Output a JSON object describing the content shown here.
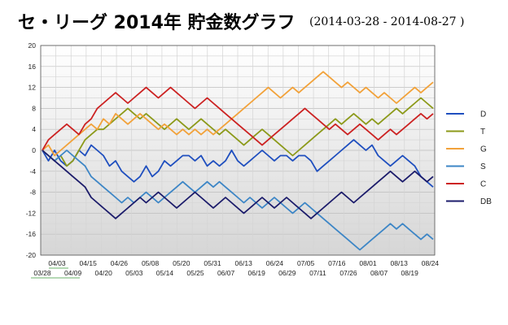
{
  "title": "セ・リーグ 2014年 貯金数グラフ",
  "date_range": "(2014-03-28 - 2014-08-27 )",
  "chart_data": {
    "type": "line",
    "title": "セ・リーグ 2014年 貯金数グラフ",
    "subtitle": "(2014-03-28 - 2014-08-27 )",
    "xlabel": "",
    "ylabel": "",
    "ylim": [
      -20,
      20
    ],
    "yticks": [
      20,
      16,
      12,
      8,
      4,
      0,
      -4,
      -8,
      -12,
      -16,
      -20
    ],
    "grid": true,
    "legend": "right",
    "x_ticks_upper": [
      "04/03",
      "04/15",
      "04/26",
      "05/08",
      "05/20",
      "05/31",
      "06/13",
      "06/24",
      "07/05",
      "07/16",
      "08/01",
      "08/13",
      "08/24"
    ],
    "x_ticks_lower": [
      "03/28",
      "04/09",
      "04/20",
      "05/03",
      "05/14",
      "05/25",
      "06/07",
      "06/19",
      "06/29",
      "07/11",
      "07/26",
      "08/07",
      "08/19"
    ],
    "series": [
      {
        "name": "D",
        "color": "#1f4fbf",
        "values": [
          0,
          -2,
          0,
          -2,
          -3,
          -2,
          0,
          -1,
          1,
          0,
          -1,
          -3,
          -2,
          -4,
          -5,
          -6,
          -5,
          -3,
          -5,
          -4,
          -2,
          -3,
          -2,
          -1,
          -1,
          -2,
          -1,
          -3,
          -2,
          -3,
          -2,
          0,
          -2,
          -3,
          -2,
          -1,
          0,
          -1,
          -2,
          -1,
          -1,
          -2,
          -1,
          -1,
          -2,
          -4,
          -3,
          -2,
          -1,
          0,
          1,
          2,
          1,
          0,
          1,
          -1,
          -2,
          -3,
          -2,
          -1,
          -2,
          -3,
          -5,
          -6,
          -7
        ]
      },
      {
        "name": "T",
        "color": "#8c9a1a",
        "values": [
          0,
          -1,
          -2,
          -1,
          -3,
          -2,
          0,
          2,
          3,
          4,
          4,
          5,
          6,
          7,
          8,
          7,
          6,
          7,
          6,
          5,
          4,
          5,
          6,
          5,
          4,
          5,
          6,
          5,
          4,
          3,
          4,
          3,
          2,
          1,
          2,
          3,
          4,
          3,
          2,
          1,
          0,
          -1,
          0,
          1,
          2,
          3,
          4,
          5,
          6,
          5,
          6,
          7,
          6,
          5,
          6,
          5,
          6,
          7,
          8,
          7,
          8,
          9,
          10,
          9,
          8
        ]
      },
      {
        "name": "G",
        "color": "#f2a23a",
        "values": [
          0,
          1,
          -1,
          0,
          1,
          2,
          3,
          4,
          5,
          4,
          6,
          5,
          7,
          6,
          5,
          6,
          7,
          6,
          5,
          4,
          5,
          4,
          3,
          4,
          3,
          4,
          3,
          4,
          3,
          4,
          5,
          6,
          7,
          8,
          9,
          10,
          11,
          12,
          11,
          10,
          11,
          12,
          11,
          12,
          13,
          14,
          15,
          14,
          13,
          12,
          13,
          12,
          11,
          12,
          11,
          10,
          11,
          10,
          9,
          10,
          11,
          12,
          11,
          12,
          13
        ]
      },
      {
        "name": "S",
        "color": "#3d86c6",
        "values": [
          0,
          -1,
          -2,
          -1,
          0,
          -1,
          -2,
          -3,
          -5,
          -6,
          -7,
          -8,
          -9,
          -10,
          -9,
          -10,
          -9,
          -8,
          -9,
          -10,
          -9,
          -8,
          -7,
          -6,
          -7,
          -8,
          -7,
          -6,
          -7,
          -6,
          -7,
          -8,
          -9,
          -10,
          -9,
          -10,
          -11,
          -10,
          -9,
          -10,
          -11,
          -12,
          -11,
          -10,
          -11,
          -12,
          -13,
          -14,
          -15,
          -16,
          -17,
          -18,
          -19,
          -18,
          -17,
          -16,
          -15,
          -14,
          -15,
          -14,
          -15,
          -16,
          -17,
          -16,
          -17
        ]
      },
      {
        "name": "C",
        "color": "#cc2222",
        "values": [
          0,
          2,
          3,
          4,
          5,
          4,
          3,
          5,
          6,
          8,
          9,
          10,
          11,
          10,
          9,
          10,
          11,
          12,
          11,
          10,
          11,
          12,
          11,
          10,
          9,
          8,
          9,
          10,
          9,
          8,
          7,
          6,
          5,
          4,
          3,
          2,
          1,
          2,
          3,
          4,
          5,
          6,
          7,
          8,
          7,
          6,
          5,
          4,
          5,
          4,
          3,
          4,
          5,
          4,
          3,
          2,
          3,
          4,
          3,
          4,
          5,
          6,
          7,
          6,
          7
        ]
      },
      {
        "name": "DB",
        "color": "#1c1c6b",
        "values": [
          0,
          -1,
          -2,
          -3,
          -4,
          -5,
          -6,
          -7,
          -9,
          -10,
          -11,
          -12,
          -13,
          -12,
          -11,
          -10,
          -9,
          -10,
          -9,
          -8,
          -9,
          -10,
          -11,
          -10,
          -9,
          -8,
          -9,
          -10,
          -11,
          -10,
          -9,
          -10,
          -11,
          -12,
          -11,
          -10,
          -9,
          -10,
          -11,
          -10,
          -9,
          -10,
          -11,
          -12,
          -13,
          -12,
          -11,
          -10,
          -9,
          -8,
          -9,
          -10,
          -9,
          -8,
          -7,
          -6,
          -5,
          -4,
          -5,
          -6,
          -5,
          -4,
          -5,
          -6,
          -5
        ]
      }
    ]
  }
}
